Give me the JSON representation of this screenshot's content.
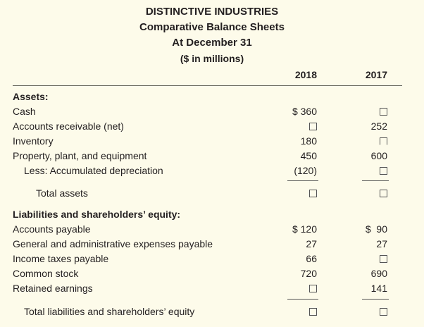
{
  "header": {
    "company": "DISTINCTIVE INDUSTRIES",
    "statement": "Comparative Balance Sheets",
    "date": "At December 31",
    "units": "($ in millions)"
  },
  "columns": [
    "2018",
    "2017"
  ],
  "assets": {
    "heading": "Assets:",
    "rows": [
      {
        "label": "Cash",
        "y2018": "$ 360",
        "y2017": ""
      },
      {
        "label": "Accounts receivable (net)",
        "y2018": "",
        "y2017": "252"
      },
      {
        "label": "Inventory",
        "y2018": "180",
        "y2017": ""
      },
      {
        "label": "Property, plant, and equipment",
        "y2018": "450",
        "y2017": "600"
      },
      {
        "label": "Less: Accumulated depreciation",
        "y2018": "(120)",
        "y2017": ""
      }
    ],
    "total": {
      "label": "Total assets",
      "y2018": "",
      "y2017": ""
    }
  },
  "liabilities": {
    "heading": "Liabilities and shareholders’ equity:",
    "rows": [
      {
        "label": "Accounts payable",
        "y2018": "$ 120",
        "y2017": "$  90"
      },
      {
        "label": "General and administrative expenses payable",
        "y2018": "27",
        "y2017": "27"
      },
      {
        "label": "Income taxes payable",
        "y2018": "66",
        "y2017": ""
      },
      {
        "label": "Common stock",
        "y2018": "720",
        "y2017": "690"
      },
      {
        "label": "Retained earnings",
        "y2018": "",
        "y2017": "141"
      }
    ],
    "total": {
      "label": "Total liabilities and shareholders’ equity",
      "y2018": "",
      "y2017": ""
    }
  }
}
